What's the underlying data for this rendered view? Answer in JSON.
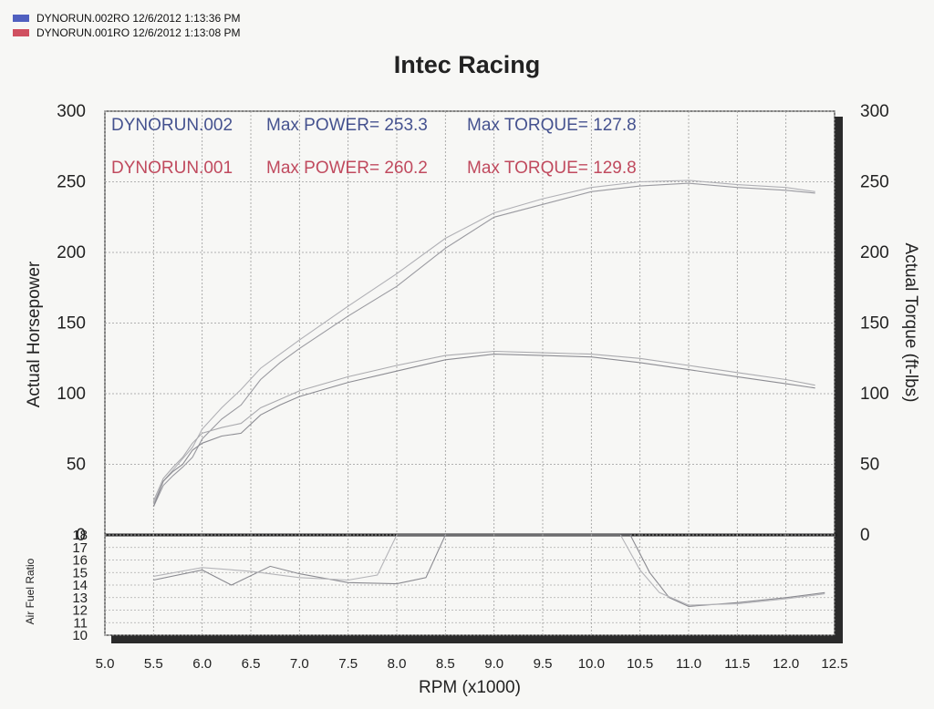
{
  "legend": [
    {
      "label": "DYNORUN.002RO  12/6/2012 1:13:36 PM",
      "color": "#5060c0"
    },
    {
      "label": "DYNORUN.001RO  12/6/2012 1:13:08 PM",
      "color": "#d05060"
    }
  ],
  "annotations": [
    {
      "run": "DYNORUN.002",
      "power_text": "Max POWER= 253.3",
      "torque_text": "Max TORQUE= 127.8",
      "color": "#45528f"
    },
    {
      "run": "DYNORUN.001",
      "power_text": "Max POWER= 260.2",
      "torque_text": "Max TORQUE= 129.8",
      "color": "#c04a5e"
    }
  ],
  "chart_data": {
    "type": "line",
    "title": "Intec Racing",
    "xlabel": "RPM (x1000)",
    "ylabel": "Actual Horsepower",
    "y2label": "Actual Torque (ft-lbs)",
    "afr_label": "Air Fuel Ratio",
    "xlim": [
      5.0,
      12.5
    ],
    "ylim": [
      0,
      300
    ],
    "afr_lim": [
      10,
      18
    ],
    "grid": true,
    "x_ticks": [
      "5.0",
      "5.5",
      "6.0",
      "6.5",
      "7.0",
      "7.5",
      "8.0",
      "8.5",
      "9.0",
      "9.5",
      "10.0",
      "10.5",
      "11.0",
      "11.5",
      "12.0",
      "12.5"
    ],
    "y_ticks": [
      "0",
      "50",
      "100",
      "150",
      "200",
      "250",
      "300"
    ],
    "afr_ticks": [
      "10",
      "11",
      "12",
      "13",
      "14",
      "15",
      "16",
      "17",
      "18"
    ],
    "series": [
      {
        "name": "DYNORUN.002 Power",
        "color": "#9a9aa0",
        "x": [
          5.5,
          5.6,
          5.7,
          5.8,
          5.9,
          6.0,
          6.2,
          6.4,
          6.6,
          6.8,
          7.0,
          7.5,
          8.0,
          8.5,
          9.0,
          9.5,
          10.0,
          10.5,
          11.0,
          11.5,
          12.0,
          12.3
        ],
        "y": [
          20,
          35,
          42,
          48,
          55,
          68,
          82,
          92,
          110,
          122,
          132,
          155,
          176,
          203,
          225,
          234,
          243,
          247,
          249,
          246,
          244,
          242
        ]
      },
      {
        "name": "DYNORUN.001 Power",
        "color": "#b0b0b5",
        "x": [
          5.5,
          5.6,
          5.7,
          5.8,
          5.9,
          6.0,
          6.2,
          6.4,
          6.6,
          6.8,
          7.0,
          7.5,
          8.0,
          8.5,
          9.0,
          9.5,
          10.0,
          10.5,
          11.0,
          11.5,
          12.0,
          12.3
        ],
        "y": [
          22,
          38,
          46,
          54,
          62,
          75,
          90,
          103,
          118,
          128,
          138,
          162,
          185,
          210,
          228,
          238,
          246,
          250,
          251,
          248,
          246,
          243
        ]
      },
      {
        "name": "DYNORUN.002 Torque",
        "color": "#8c8c92",
        "x": [
          5.5,
          5.6,
          5.7,
          5.8,
          5.9,
          6.0,
          6.2,
          6.4,
          6.6,
          6.8,
          7.0,
          7.5,
          8.0,
          8.5,
          9.0,
          9.5,
          10.0,
          10.5,
          11.0,
          11.5,
          12.0,
          12.3
        ],
        "y": [
          20,
          38,
          45,
          50,
          60,
          65,
          70,
          72,
          85,
          92,
          98,
          108,
          116,
          124,
          128,
          127,
          126,
          122,
          117,
          112,
          107,
          104
        ]
      },
      {
        "name": "DYNORUN.001 Torque",
        "color": "#aaaaae",
        "x": [
          5.5,
          5.6,
          5.7,
          5.8,
          5.9,
          6.0,
          6.2,
          6.4,
          6.6,
          6.8,
          7.0,
          7.5,
          8.0,
          8.5,
          9.0,
          9.5,
          10.0,
          10.5,
          11.0,
          11.5,
          12.0,
          12.3
        ],
        "y": [
          24,
          40,
          48,
          55,
          65,
          72,
          76,
          79,
          90,
          96,
          102,
          112,
          120,
          127,
          130,
          129,
          128,
          125,
          120,
          115,
          110,
          106
        ]
      }
    ],
    "afr_series": [
      {
        "name": "DYNORUN.002 AFR",
        "color": "#8a8a90",
        "x": [
          5.5,
          6.0,
          6.3,
          6.7,
          7.0,
          7.5,
          8.0,
          8.3,
          8.5,
          10.4,
          10.6,
          10.8,
          11.0,
          11.5,
          12.0,
          12.4
        ],
        "y": [
          14.4,
          15.2,
          14.0,
          15.5,
          14.9,
          14.2,
          14.1,
          14.6,
          18,
          18,
          15.0,
          13.0,
          12.3,
          12.6,
          13.0,
          13.4
        ]
      },
      {
        "name": "DYNORUN.001 AFR",
        "color": "#b4b4b8",
        "x": [
          5.5,
          6.0,
          6.5,
          7.0,
          7.5,
          7.8,
          8.0,
          10.3,
          10.5,
          10.7,
          11.0,
          11.5,
          12.0,
          12.4
        ],
        "y": [
          14.7,
          15.4,
          15.1,
          14.6,
          14.4,
          14.8,
          18,
          18,
          15.2,
          13.4,
          12.4,
          12.5,
          12.9,
          13.3
        ]
      }
    ]
  }
}
